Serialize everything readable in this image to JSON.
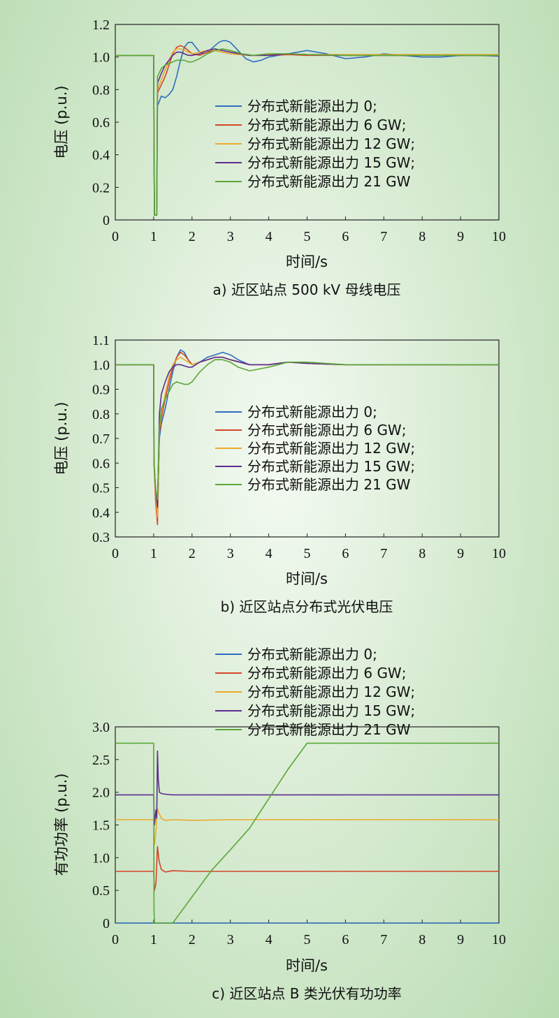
{
  "colors": [
    "#2e6ec0",
    "#d5442a",
    "#ebaa2c",
    "#5d2c8f",
    "#5aa838"
  ],
  "chart_data": [
    {
      "type": "line",
      "caption": "a) 近区站点 500 kV 母线电压",
      "xlabel": "时间/s",
      "ylabel": "电压 (p.u.)",
      "xlim": [
        0,
        10
      ],
      "ylim": [
        0,
        1.2
      ],
      "xticks": [
        "0",
        "1",
        "2",
        "3",
        "4",
        "5",
        "6",
        "7",
        "8",
        "9",
        "10"
      ],
      "yticks": [
        "0",
        "0.2",
        "0.4",
        "0.6",
        "0.8",
        "1.0",
        "1.2"
      ],
      "legend_position": "center",
      "series": [
        {
          "name": "分布式新能源出力 0;",
          "x": [
            0,
            1,
            1.01,
            1.02,
            1.08,
            1.1,
            1.2,
            1.3,
            1.4,
            1.5,
            1.6,
            1.7,
            1.8,
            1.9,
            2.0,
            2.1,
            2.2,
            2.3,
            2.4,
            2.5,
            2.6,
            2.7,
            2.8,
            2.9,
            3.0,
            3.2,
            3.4,
            3.6,
            3.8,
            4.0,
            4.5,
            5.0,
            5.5,
            6.0,
            6.5,
            7.0,
            7.5,
            8.0,
            8.5,
            9.0,
            9.5,
            10
          ],
          "y": [
            1.01,
            1.01,
            0.5,
            0.03,
            0.03,
            0.7,
            0.76,
            0.75,
            0.77,
            0.8,
            0.88,
            0.98,
            1.06,
            1.09,
            1.09,
            1.06,
            1.03,
            1.02,
            1.03,
            1.05,
            1.07,
            1.09,
            1.1,
            1.1,
            1.09,
            1.04,
            0.99,
            0.97,
            0.98,
            1.0,
            1.02,
            1.04,
            1.02,
            0.99,
            1.0,
            1.02,
            1.01,
            1.0,
            1.0,
            1.01,
            1.01,
            1.005
          ]
        },
        {
          "name": "分布式新能源出力 6 GW;",
          "x": [
            0,
            1,
            1.01,
            1.02,
            1.08,
            1.1,
            1.2,
            1.3,
            1.4,
            1.5,
            1.6,
            1.7,
            1.8,
            1.9,
            2.0,
            2.2,
            2.4,
            2.6,
            2.8,
            3.0,
            3.5,
            4.0,
            4.5,
            5.0,
            6,
            7,
            8,
            9,
            10
          ],
          "y": [
            1.01,
            1.01,
            0.5,
            0.03,
            0.03,
            0.78,
            0.83,
            0.88,
            0.95,
            1.02,
            1.06,
            1.07,
            1.06,
            1.04,
            1.02,
            1.01,
            1.03,
            1.04,
            1.03,
            1.02,
            1.01,
            1.01,
            1.015,
            1.01,
            1.01,
            1.01,
            1.01,
            1.01,
            1.01
          ]
        },
        {
          "name": "分布式新能源出力 12 GW;",
          "x": [
            0,
            1,
            1.01,
            1.02,
            1.08,
            1.1,
            1.2,
            1.3,
            1.4,
            1.5,
            1.6,
            1.7,
            1.8,
            1.9,
            2.0,
            2.2,
            2.4,
            2.6,
            2.8,
            3.0,
            3.5,
            4.0,
            4.5,
            5.0,
            6,
            7,
            8,
            9,
            10
          ],
          "y": [
            1.01,
            1.01,
            0.5,
            0.03,
            0.03,
            0.8,
            0.86,
            0.92,
            0.98,
            1.03,
            1.05,
            1.05,
            1.04,
            1.03,
            1.02,
            1.03,
            1.04,
            1.04,
            1.03,
            1.02,
            1.01,
            1.015,
            1.02,
            1.015,
            1.015,
            1.015,
            1.015,
            1.015,
            1.015
          ]
        },
        {
          "name": "分布式新能源出力 15 GW;",
          "x": [
            0,
            1,
            1.01,
            1.02,
            1.08,
            1.1,
            1.2,
            1.3,
            1.4,
            1.5,
            1.6,
            1.7,
            1.8,
            1.9,
            2.0,
            2.2,
            2.4,
            2.6,
            2.8,
            3.0,
            3.5,
            4.0,
            4.5,
            5.0,
            6,
            7,
            8,
            9,
            10
          ],
          "y": [
            1.01,
            1.01,
            0.5,
            0.03,
            0.03,
            0.84,
            0.9,
            0.95,
            0.98,
            1.01,
            1.03,
            1.03,
            1.02,
            1.01,
            1.01,
            1.02,
            1.04,
            1.05,
            1.04,
            1.03,
            1.01,
            1.01,
            1.02,
            1.015,
            1.01,
            1.01,
            1.01,
            1.01,
            1.01
          ]
        },
        {
          "name": "分布式新能源出力 21 GW",
          "x": [
            0,
            1,
            1.01,
            1.02,
            1.08,
            1.1,
            1.2,
            1.3,
            1.4,
            1.5,
            1.6,
            1.7,
            1.8,
            1.9,
            2.0,
            2.2,
            2.4,
            2.6,
            2.8,
            3.0,
            3.3,
            3.6,
            4.0,
            4.5,
            5.0,
            6,
            7,
            8,
            9,
            10
          ],
          "y": [
            1.01,
            1.01,
            0.5,
            0.03,
            0.03,
            0.88,
            0.93,
            0.95,
            0.96,
            0.97,
            0.98,
            0.98,
            0.98,
            0.97,
            0.97,
            0.99,
            1.02,
            1.04,
            1.05,
            1.04,
            1.02,
            1.01,
            1.02,
            1.02,
            1.015,
            1.01,
            1.01,
            1.01,
            1.01,
            1.01
          ]
        }
      ]
    },
    {
      "type": "line",
      "caption": "b) 近区站点分布式光伏电压",
      "xlabel": "时间/s",
      "ylabel": "电压 (p.u.)",
      "xlim": [
        0,
        10
      ],
      "ylim": [
        0.3,
        1.1
      ],
      "xticks": [
        "0",
        "1",
        "2",
        "3",
        "4",
        "5",
        "6",
        "7",
        "8",
        "9",
        "10"
      ],
      "yticks": [
        "0.3",
        "0.4",
        "0.5",
        "0.6",
        "0.7",
        "0.8",
        "0.9",
        "1.0",
        "1.1"
      ],
      "legend_position": "center",
      "series": [
        {
          "name": "分布式新能源出力 0;",
          "x": [
            0,
            1,
            1.01,
            1.05,
            1.1,
            1.15,
            1.2,
            1.3,
            1.4,
            1.5,
            1.6,
            1.7,
            1.8,
            1.9,
            2.0,
            2.2,
            2.4,
            2.6,
            2.8,
            3.0,
            3.2,
            3.5,
            4.0,
            4.5,
            5,
            6,
            7,
            8,
            9,
            10
          ],
          "y": [
            1.0,
            1.0,
            0.6,
            0.5,
            0.4,
            0.7,
            0.76,
            0.82,
            0.9,
            0.97,
            1.03,
            1.06,
            1.05,
            1.02,
            1.0,
            1.01,
            1.03,
            1.04,
            1.05,
            1.04,
            1.02,
            1.0,
            1.0,
            1.01,
            1.005,
            1.0,
            1.0,
            1.0,
            1.0,
            1.0
          ]
        },
        {
          "name": "分布式新能源出力 6 GW;",
          "x": [
            0,
            1,
            1.01,
            1.05,
            1.1,
            1.15,
            1.2,
            1.3,
            1.4,
            1.5,
            1.6,
            1.7,
            1.8,
            1.9,
            2.0,
            2.2,
            2.4,
            2.6,
            2.8,
            3.0,
            3.5,
            4.0,
            4.5,
            5,
            6,
            7,
            8,
            9,
            10
          ],
          "y": [
            1.0,
            1.0,
            0.6,
            0.45,
            0.35,
            0.72,
            0.78,
            0.86,
            0.93,
            0.99,
            1.03,
            1.05,
            1.04,
            1.02,
            1.0,
            1.01,
            1.02,
            1.03,
            1.03,
            1.02,
            1.0,
            1.0,
            1.01,
            1.005,
            1.0,
            1.0,
            1.0,
            1.0,
            1.0
          ]
        },
        {
          "name": "分布式新能源出力 12 GW;",
          "x": [
            0,
            1,
            1.01,
            1.05,
            1.1,
            1.15,
            1.2,
            1.3,
            1.4,
            1.5,
            1.6,
            1.7,
            1.8,
            1.9,
            2.0,
            2.2,
            2.4,
            2.6,
            2.8,
            3.0,
            3.5,
            4.0,
            4.5,
            5,
            6,
            7,
            8,
            9,
            10
          ],
          "y": [
            1.0,
            1.0,
            0.6,
            0.48,
            0.38,
            0.74,
            0.8,
            0.88,
            0.95,
            1.0,
            1.02,
            1.03,
            1.02,
            1.01,
            1.0,
            1.01,
            1.02,
            1.03,
            1.03,
            1.02,
            1.0,
            1.0,
            1.01,
            1.005,
            1.0,
            1.0,
            1.0,
            1.0,
            1.0
          ]
        },
        {
          "name": "分布式新能源出力 15 GW;",
          "x": [
            0,
            1,
            1.01,
            1.05,
            1.1,
            1.15,
            1.2,
            1.3,
            1.4,
            1.5,
            1.6,
            1.7,
            1.8,
            1.9,
            2.0,
            2.2,
            2.4,
            2.6,
            2.8,
            3.0,
            3.5,
            4.0,
            4.5,
            5,
            6,
            7,
            8,
            9,
            10
          ],
          "y": [
            1.0,
            1.0,
            0.6,
            0.5,
            0.42,
            0.8,
            0.88,
            0.93,
            0.97,
            0.99,
            1.0,
            1.0,
            0.995,
            0.99,
            0.99,
            1.01,
            1.02,
            1.03,
            1.03,
            1.02,
            1.0,
            1.0,
            1.01,
            1.005,
            1.0,
            1.0,
            1.0,
            1.0,
            1.0
          ]
        },
        {
          "name": "分布式新能源出力 21 GW",
          "x": [
            0,
            1,
            1.01,
            1.05,
            1.1,
            1.15,
            1.2,
            1.3,
            1.4,
            1.5,
            1.6,
            1.7,
            1.8,
            1.9,
            2.0,
            2.2,
            2.4,
            2.6,
            2.8,
            3.0,
            3.2,
            3.5,
            4.0,
            4.5,
            5,
            6,
            7,
            8,
            9,
            10
          ],
          "y": [
            1.0,
            1.0,
            0.6,
            0.5,
            0.45,
            0.75,
            0.82,
            0.86,
            0.89,
            0.92,
            0.93,
            0.925,
            0.92,
            0.92,
            0.93,
            0.97,
            1.0,
            1.02,
            1.02,
            1.01,
            0.99,
            0.975,
            0.99,
            1.01,
            1.01,
            1.0,
            1.0,
            1.0,
            1.0,
            1.0
          ]
        }
      ]
    },
    {
      "type": "line",
      "caption": "c) 近区站点 B 类光伏有功功率",
      "xlabel": "时间/s",
      "ylabel": "有功功率 (p.u.)",
      "xlim": [
        0,
        10
      ],
      "ylim": [
        0,
        3.0
      ],
      "xticks": [
        "0",
        "1",
        "2",
        "3",
        "4",
        "5",
        "6",
        "7",
        "8",
        "9",
        "10"
      ],
      "yticks": [
        "0",
        "0.5",
        "1.0",
        "1.5",
        "2.0",
        "2.5",
        "3.0"
      ],
      "legend_position": "above",
      "series": [
        {
          "name": "分布式新能源出力 0;",
          "x": [
            0,
            10
          ],
          "y": [
            0,
            0
          ]
        },
        {
          "name": "分布式新能源出力 6 GW;",
          "x": [
            0,
            1,
            1.02,
            1.06,
            1.08,
            1.1,
            1.14,
            1.2,
            1.3,
            1.5,
            2,
            3,
            4,
            5,
            6,
            7,
            8,
            9,
            10
          ],
          "y": [
            0.79,
            0.79,
            0.5,
            0.6,
            0.9,
            1.17,
            0.95,
            0.82,
            0.78,
            0.8,
            0.79,
            0.79,
            0.79,
            0.79,
            0.79,
            0.79,
            0.79,
            0.79,
            0.79
          ]
        },
        {
          "name": "分布式新能源出力 12 GW;",
          "x": [
            0,
            1,
            1.02,
            1.06,
            1.08,
            1.1,
            1.14,
            1.2,
            1.3,
            1.5,
            2,
            3,
            4,
            5,
            6,
            7,
            8,
            9,
            10
          ],
          "y": [
            1.58,
            1.58,
            1.2,
            1.4,
            1.65,
            1.75,
            1.68,
            1.6,
            1.57,
            1.58,
            1.57,
            1.58,
            1.58,
            1.58,
            1.58,
            1.58,
            1.58,
            1.58,
            1.58
          ]
        },
        {
          "name": "分布式新能源出力 15 GW;",
          "x": [
            0,
            1,
            1.02,
            1.06,
            1.08,
            1.1,
            1.12,
            1.15,
            1.2,
            1.3,
            1.5,
            2,
            3,
            4,
            5,
            6,
            7,
            8,
            9,
            10
          ],
          "y": [
            1.96,
            1.96,
            1.5,
            1.73,
            1.6,
            2.63,
            2.2,
            2.0,
            1.98,
            1.97,
            1.96,
            1.96,
            1.96,
            1.96,
            1.96,
            1.96,
            1.96,
            1.96,
            1.96,
            1.96
          ]
        },
        {
          "name": "分布式新能源出力 21 GW",
          "x": [
            0,
            1,
            1.01,
            1.02,
            1.5,
            2,
            2.5,
            3,
            3.5,
            4,
            4.5,
            5,
            6,
            7,
            8,
            9,
            10
          ],
          "y": [
            2.75,
            2.75,
            0.2,
            0,
            0,
            0.4,
            0.8,
            1.12,
            1.45,
            1.9,
            2.35,
            2.75,
            2.75,
            2.75,
            2.75,
            2.75,
            2.75
          ]
        }
      ]
    }
  ]
}
